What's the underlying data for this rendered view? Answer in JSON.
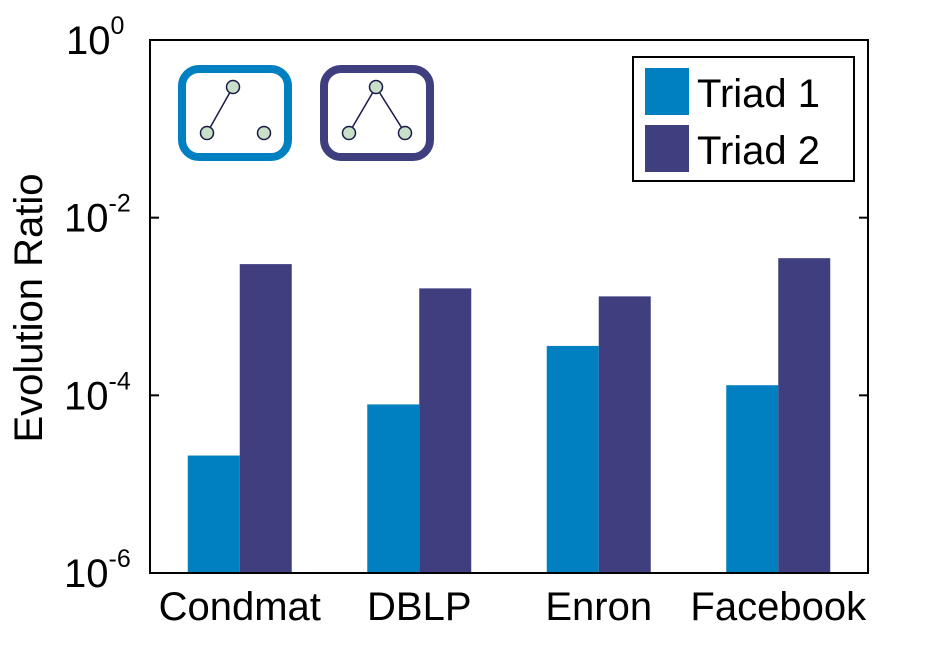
{
  "chart_data": {
    "type": "bar",
    "title": "",
    "xlabel": "",
    "ylabel": "Evolution Ratio",
    "yscale": "log",
    "ylim": [
      1e-06,
      1
    ],
    "yticks": [
      {
        "base": "10",
        "exp": "-6"
      },
      {
        "base": "10",
        "exp": "-4"
      },
      {
        "base": "10",
        "exp": "-2"
      },
      {
        "base": "10",
        "exp": "0"
      }
    ],
    "categories": [
      "Condmat",
      "DBLP",
      "Enron",
      "Facebook"
    ],
    "series": [
      {
        "name": "Triad 1",
        "color": "#0080c0",
        "values": [
          2.1e-05,
          7.9e-05,
          0.00036,
          0.00013
        ]
      },
      {
        "name": "Triad 2",
        "color": "#3f3f7f",
        "values": [
          0.003,
          0.0016,
          0.0013,
          0.0035
        ]
      }
    ],
    "legend_position": "top-right",
    "grid": false,
    "annotations": [
      {
        "name": "triad-1-icon",
        "description": "open path triad",
        "color": "#0080c0"
      },
      {
        "name": "triad-2-icon",
        "description": "two-edge wedge triad",
        "color": "#3f3f7f"
      }
    ]
  }
}
